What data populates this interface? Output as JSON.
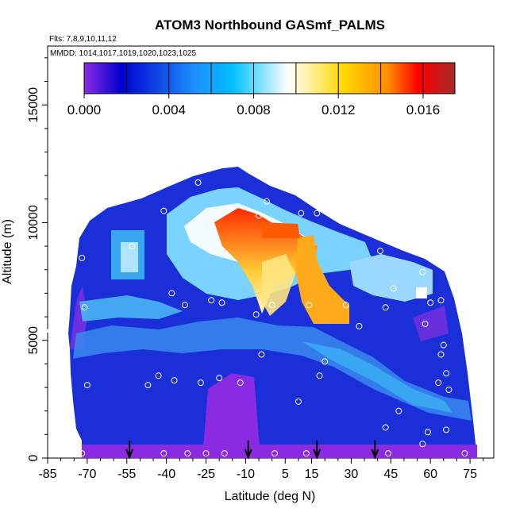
{
  "chart_data": {
    "type": "heatmap",
    "title": "ATOM3 Northbound GASmf_PALMS",
    "subtitle": "Flts: 7,8,9,10,11,12",
    "inner_note": "MMDD: 1014,1017,1019,1020,1023,1025",
    "xlabel": "Latitude (deg N)",
    "ylabel": "Altitude (m)",
    "xlim": [
      -85,
      84
    ],
    "ylim": [
      0,
      17500
    ],
    "x_ticks": [
      "-85",
      "-70",
      "-55",
      "-40",
      "-25",
      "-10",
      "5",
      "15",
      "30",
      "45",
      "60",
      "75"
    ],
    "x_tick_values": [
      -85,
      -70,
      -55,
      -40,
      -25,
      -10,
      5,
      15,
      30,
      45,
      60,
      75
    ],
    "y_ticks": [
      "0",
      "5000",
      "10000",
      "15000"
    ],
    "y_tick_values": [
      0,
      5000,
      10000,
      15000
    ],
    "colorbar": {
      "tick_labels": [
        "0.000",
        "0.004",
        "0.008",
        "0.012",
        "0.016"
      ],
      "tick_values": [
        0.0,
        0.004,
        0.008,
        0.012,
        0.016
      ],
      "range": [
        0.0,
        0.0175
      ],
      "colors": [
        "#8a2be2",
        "#0000cd",
        "#1e90ff",
        "#00bfff",
        "#ffffff",
        "#ffd700",
        "#ff8c00",
        "#ff0000",
        "#a52a2a"
      ]
    },
    "profile_arrows_lat": [
      -54,
      -9,
      17,
      39
    ],
    "grid": false,
    "legend": "colorbar top-inside"
  }
}
